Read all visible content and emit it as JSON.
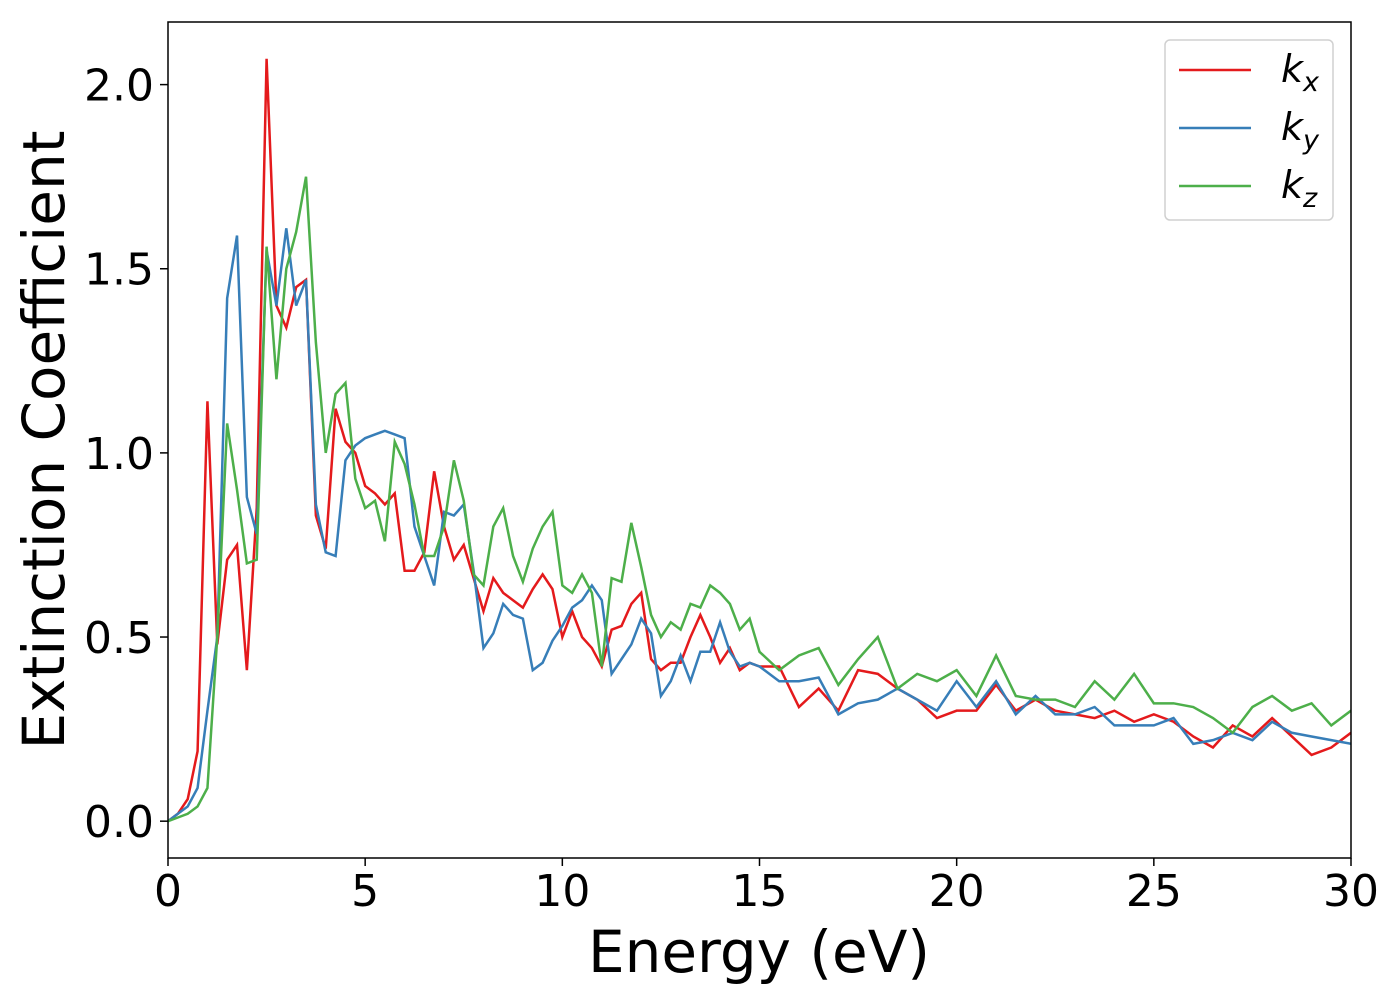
{
  "chart_data": {
    "type": "line",
    "xlabel": "Energy (eV)",
    "ylabel": "Extinction Coefficient",
    "xlim": [
      0,
      30
    ],
    "ylim": [
      -0.1,
      2.17
    ],
    "xticks": [
      0,
      5,
      10,
      15,
      20,
      25,
      30
    ],
    "yticks": [
      {
        "value": 0,
        "label": "0.0"
      },
      {
        "value": 0.5,
        "label": "0.5"
      },
      {
        "value": 1,
        "label": "1.0"
      },
      {
        "value": 1.5,
        "label": "1.5"
      },
      {
        "value": 2,
        "label": "2.0"
      }
    ],
    "legend": "upper right",
    "grid": false,
    "x": [
      0,
      0.25,
      0.5,
      0.75,
      1,
      1.25,
      1.5,
      1.75,
      2,
      2.25,
      2.5,
      2.75,
      3,
      3.25,
      3.5,
      3.75,
      4,
      4.25,
      4.5,
      4.75,
      5,
      5.25,
      5.5,
      5.75,
      6,
      6.25,
      6.5,
      6.75,
      7,
      7.25,
      7.5,
      7.75,
      8,
      8.25,
      8.5,
      8.75,
      9,
      9.25,
      9.5,
      9.75,
      10,
      10.25,
      10.5,
      10.75,
      11,
      11.25,
      11.5,
      11.75,
      12,
      12.25,
      12.5,
      12.75,
      13,
      13.25,
      13.5,
      13.75,
      14,
      14.25,
      14.5,
      14.75,
      15,
      15.5,
      16,
      16.5,
      17,
      17.5,
      18,
      18.5,
      19,
      19.5,
      20,
      20.5,
      21,
      21.5,
      22,
      22.5,
      23,
      23.5,
      24,
      24.5,
      25,
      25.5,
      26,
      26.5,
      27,
      27.5,
      28,
      28.5,
      29,
      29.5,
      30
    ],
    "series": [
      {
        "name": "kx",
        "color": "#e41a1c",
        "values": [
          0,
          0.02,
          0.06,
          0.19,
          1.14,
          0.48,
          0.71,
          0.75,
          0.41,
          0.85,
          2.07,
          1.4,
          1.34,
          1.45,
          1.47,
          0.83,
          0.74,
          1.12,
          1.03,
          1.0,
          0.91,
          0.89,
          0.86,
          0.89,
          0.68,
          0.68,
          0.73,
          0.95,
          0.8,
          0.71,
          0.75,
          0.66,
          0.57,
          0.66,
          0.62,
          0.6,
          0.58,
          0.63,
          0.67,
          0.63,
          0.5,
          0.57,
          0.5,
          0.47,
          0.42,
          0.52,
          0.53,
          0.59,
          0.62,
          0.44,
          0.41,
          0.43,
          0.43,
          0.5,
          0.56,
          0.5,
          0.43,
          0.47,
          0.41,
          0.43,
          0.42,
          0.42,
          0.31,
          0.36,
          0.3,
          0.41,
          0.4,
          0.36,
          0.33,
          0.28,
          0.3,
          0.3,
          0.37,
          0.3,
          0.33,
          0.3,
          0.29,
          0.28,
          0.3,
          0.27,
          0.29,
          0.27,
          0.23,
          0.2,
          0.26,
          0.23,
          0.28,
          0.23,
          0.18,
          0.2,
          0.24
        ]
      },
      {
        "name": "ky",
        "color": "#377eb8",
        "values": [
          0,
          0.02,
          0.04,
          0.09,
          0.3,
          0.5,
          1.42,
          1.59,
          0.88,
          0.78,
          1.55,
          1.4,
          1.61,
          1.4,
          1.47,
          0.86,
          0.73,
          0.72,
          0.98,
          1.02,
          1.04,
          1.05,
          1.06,
          1.05,
          1.04,
          0.8,
          0.72,
          0.64,
          0.84,
          0.83,
          0.86,
          0.68,
          0.47,
          0.51,
          0.59,
          0.56,
          0.55,
          0.41,
          0.43,
          0.49,
          0.53,
          0.58,
          0.6,
          0.64,
          0.6,
          0.4,
          0.44,
          0.48,
          0.55,
          0.51,
          0.34,
          0.38,
          0.45,
          0.38,
          0.46,
          0.46,
          0.54,
          0.46,
          0.42,
          0.43,
          0.42,
          0.38,
          0.38,
          0.39,
          0.29,
          0.32,
          0.33,
          0.36,
          0.33,
          0.3,
          0.38,
          0.31,
          0.38,
          0.29,
          0.34,
          0.29,
          0.29,
          0.31,
          0.26,
          0.26,
          0.26,
          0.28,
          0.21,
          0.22,
          0.24,
          0.22,
          0.27,
          0.24,
          0.23,
          0.22,
          0.21
        ]
      },
      {
        "name": "kz",
        "color": "#4daf4a",
        "values": [
          0,
          0.01,
          0.02,
          0.04,
          0.09,
          0.5,
          1.08,
          0.9,
          0.7,
          0.71,
          1.56,
          1.2,
          1.5,
          1.6,
          1.75,
          1.3,
          1.0,
          1.16,
          1.19,
          0.93,
          0.85,
          0.87,
          0.76,
          1.03,
          0.97,
          0.86,
          0.72,
          0.72,
          0.8,
          0.98,
          0.87,
          0.67,
          0.64,
          0.8,
          0.85,
          0.72,
          0.65,
          0.74,
          0.8,
          0.84,
          0.64,
          0.62,
          0.67,
          0.62,
          0.42,
          0.66,
          0.65,
          0.81,
          0.69,
          0.56,
          0.5,
          0.54,
          0.52,
          0.59,
          0.58,
          0.64,
          0.62,
          0.59,
          0.52,
          0.55,
          0.46,
          0.41,
          0.45,
          0.47,
          0.37,
          0.44,
          0.5,
          0.36,
          0.4,
          0.38,
          0.41,
          0.34,
          0.45,
          0.34,
          0.33,
          0.33,
          0.31,
          0.38,
          0.33,
          0.4,
          0.32,
          0.32,
          0.31,
          0.28,
          0.24,
          0.31,
          0.34,
          0.3,
          0.32,
          0.26,
          0.3
        ]
      }
    ]
  }
}
